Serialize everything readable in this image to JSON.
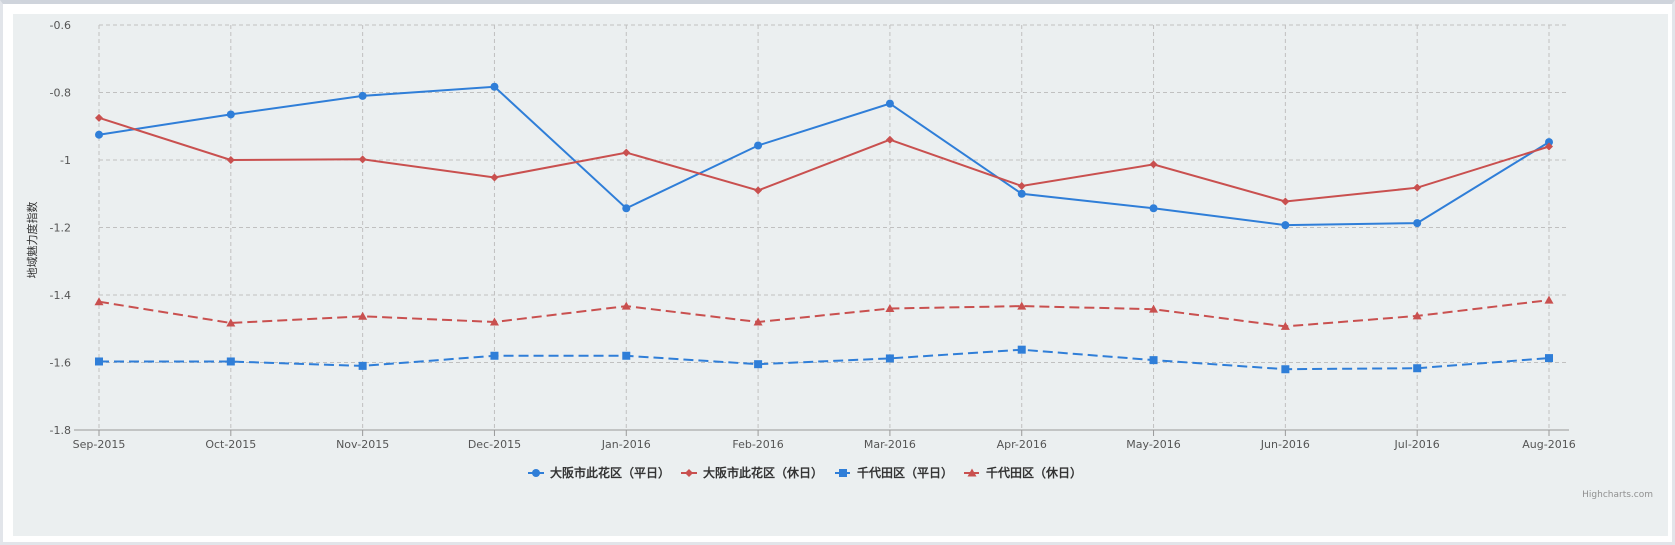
{
  "chart_data": {
    "type": "line",
    "title": "",
    "xlabel": "",
    "ylabel": "地域魅力度指数",
    "ylim": [
      -1.8,
      -0.6
    ],
    "yticks": [
      -0.6,
      -0.8,
      -1,
      -1.2,
      -1.4,
      -1.6,
      -1.8
    ],
    "categories": [
      "Sep-2015",
      "Oct-2015",
      "Nov-2015",
      "Dec-2015",
      "Jan-2016",
      "Feb-2016",
      "Mar-2016",
      "Apr-2016",
      "May-2016",
      "Jun-2016",
      "Jul-2016",
      "Aug-2016"
    ],
    "grid": true,
    "legend_position": "bottom-center",
    "series": [
      {
        "name": "大阪市此花区（平日）",
        "color": "#2f7ed8",
        "marker": "circle",
        "dash": "solid",
        "values": [
          -0.925,
          -0.865,
          -0.81,
          -0.783,
          -1.143,
          -0.957,
          -0.833,
          -1.1,
          -1.143,
          -1.193,
          -1.187,
          -0.947
        ]
      },
      {
        "name": "大阪市此花区（休日）",
        "color": "#c9504f",
        "marker": "diamond",
        "dash": "solid",
        "values": [
          -0.875,
          -1.0,
          -0.998,
          -1.052,
          -0.978,
          -1.09,
          -0.94,
          -1.077,
          -1.013,
          -1.123,
          -1.082,
          -0.96
        ]
      },
      {
        "name": "千代田区（平日）",
        "color": "#2f7ed8",
        "marker": "square",
        "dash": "dashed",
        "values": [
          -1.597,
          -1.597,
          -1.61,
          -1.58,
          -1.58,
          -1.605,
          -1.588,
          -1.562,
          -1.593,
          -1.62,
          -1.617,
          -1.587
        ]
      },
      {
        "name": "千代田区（休日）",
        "color": "#c9504f",
        "marker": "triangle",
        "dash": "dashed",
        "values": [
          -1.42,
          -1.483,
          -1.463,
          -1.48,
          -1.433,
          -1.48,
          -1.44,
          -1.433,
          -1.442,
          -1.493,
          -1.462,
          -1.415
        ]
      }
    ]
  },
  "credits": "Highcharts.com"
}
